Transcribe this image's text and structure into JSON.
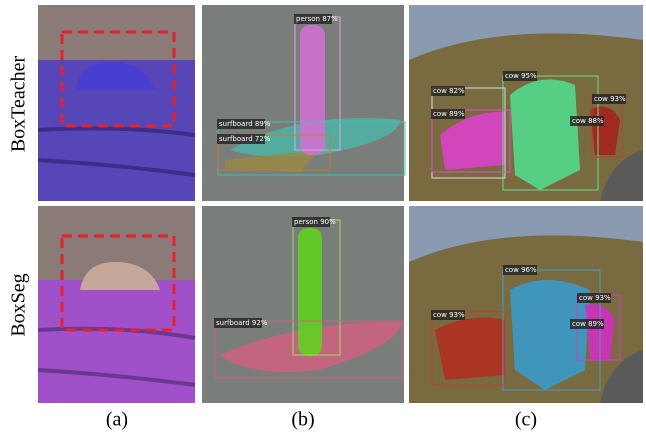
{
  "row_labels": [
    "BoxTeacher",
    "BoxSeg"
  ],
  "column_labels": [
    "(a)",
    "(b)",
    "(c)"
  ],
  "detections": {
    "boxteacher_b": [
      "person 87%",
      "surfboard 89%",
      "surfboard 72%"
    ],
    "boxteacher_c": [
      "cow 95%",
      "cow 82%",
      "cow 93%",
      "cow 89%",
      "cow 88%"
    ],
    "boxseg_b": [
      "person 90%",
      "surfboard 92%"
    ],
    "boxseg_c": [
      "cow 96%",
      "cow 93%",
      "cow 93%",
      "cow 89%"
    ]
  }
}
